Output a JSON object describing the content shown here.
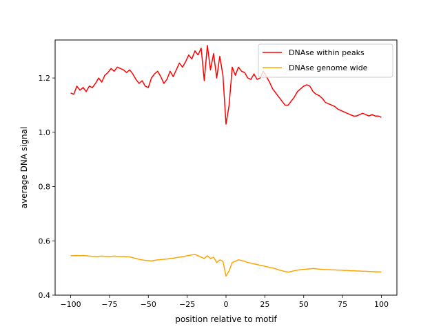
{
  "chart_data": {
    "type": "line",
    "title": "",
    "xlabel": "position relative to motif",
    "ylabel": "average DNA signal",
    "xlim": [
      -110,
      110
    ],
    "ylim": [
      0.4,
      1.34
    ],
    "xticks": [
      -100,
      -75,
      -50,
      -25,
      0,
      25,
      50,
      75,
      100
    ],
    "xtick_labels": [
      "−100",
      "−75",
      "−50",
      "−25",
      "0",
      "25",
      "50",
      "75",
      "100"
    ],
    "yticks": [
      0.4,
      0.6,
      0.8,
      1.0,
      1.2
    ],
    "ytick_labels": [
      "0.4",
      "0.6",
      "0.8",
      "1.0",
      "1.2"
    ],
    "grid": false,
    "legend_position": "top-right",
    "series": [
      {
        "name": "DNAse within peaks",
        "color": "#ff0000",
        "x": [
          -100,
          -98,
          -96,
          -94,
          -92,
          -90,
          -88,
          -86,
          -84,
          -82,
          -80,
          -78,
          -76,
          -74,
          -72,
          -70,
          -68,
          -66,
          -64,
          -62,
          -60,
          -58,
          -56,
          -54,
          -52,
          -50,
          -48,
          -46,
          -44,
          -42,
          -40,
          -38,
          -36,
          -34,
          -32,
          -30,
          -28,
          -26,
          -24,
          -22,
          -20,
          -18,
          -16,
          -14,
          -12,
          -10,
          -8,
          -6,
          -4,
          -2,
          0,
          2,
          4,
          6,
          8,
          10,
          12,
          14,
          16,
          18,
          20,
          22,
          24,
          26,
          28,
          30,
          32,
          34,
          36,
          38,
          40,
          42,
          44,
          46,
          48,
          50,
          52,
          54,
          56,
          58,
          60,
          62,
          64,
          66,
          68,
          70,
          72,
          74,
          76,
          78,
          80,
          82,
          84,
          86,
          88,
          90,
          92,
          94,
          96,
          98,
          100
        ],
        "values": [
          1.145,
          1.14,
          1.17,
          1.155,
          1.165,
          1.15,
          1.17,
          1.165,
          1.18,
          1.2,
          1.185,
          1.21,
          1.22,
          1.235,
          1.225,
          1.24,
          1.235,
          1.23,
          1.22,
          1.23,
          1.215,
          1.195,
          1.18,
          1.19,
          1.17,
          1.165,
          1.2,
          1.215,
          1.225,
          1.205,
          1.18,
          1.195,
          1.225,
          1.205,
          1.23,
          1.255,
          1.24,
          1.26,
          1.285,
          1.27,
          1.3,
          1.285,
          1.31,
          1.19,
          1.32,
          1.23,
          1.29,
          1.2,
          1.28,
          1.21,
          1.03,
          1.1,
          1.24,
          1.21,
          1.24,
          1.225,
          1.22,
          1.2,
          1.195,
          1.215,
          1.195,
          1.2,
          1.225,
          1.205,
          1.185,
          1.16,
          1.145,
          1.13,
          1.115,
          1.1,
          1.1,
          1.115,
          1.13,
          1.15,
          1.16,
          1.17,
          1.175,
          1.17,
          1.15,
          1.14,
          1.135,
          1.125,
          1.11,
          1.105,
          1.1,
          1.095,
          1.085,
          1.08,
          1.075,
          1.07,
          1.065,
          1.06,
          1.06,
          1.065,
          1.07,
          1.065,
          1.06,
          1.065,
          1.06,
          1.06,
          1.055
        ]
      },
      {
        "name": "DNAse genome wide",
        "color": "#ffa500",
        "x": [
          -100,
          -98,
          -96,
          -94,
          -92,
          -90,
          -88,
          -86,
          -84,
          -82,
          -80,
          -78,
          -76,
          -74,
          -72,
          -70,
          -68,
          -66,
          -64,
          -62,
          -60,
          -58,
          -56,
          -54,
          -52,
          -50,
          -48,
          -46,
          -44,
          -42,
          -40,
          -38,
          -36,
          -34,
          -32,
          -30,
          -28,
          -26,
          -24,
          -22,
          -20,
          -18,
          -16,
          -14,
          -12,
          -10,
          -8,
          -6,
          -4,
          -2,
          0,
          2,
          4,
          6,
          8,
          10,
          12,
          14,
          16,
          18,
          20,
          22,
          24,
          26,
          28,
          30,
          32,
          34,
          36,
          38,
          40,
          42,
          44,
          46,
          48,
          50,
          52,
          54,
          56,
          58,
          60,
          62,
          64,
          66,
          68,
          70,
          72,
          74,
          76,
          78,
          80,
          82,
          84,
          86,
          88,
          90,
          92,
          94,
          96,
          98,
          100
        ],
        "values": [
          0.545,
          0.545,
          0.546,
          0.545,
          0.546,
          0.545,
          0.544,
          0.543,
          0.542,
          0.543,
          0.544,
          0.543,
          0.542,
          0.543,
          0.544,
          0.543,
          0.542,
          0.543,
          0.542,
          0.541,
          0.538,
          0.535,
          0.532,
          0.53,
          0.528,
          0.527,
          0.526,
          0.528,
          0.53,
          0.531,
          0.532,
          0.533,
          0.535,
          0.536,
          0.538,
          0.54,
          0.542,
          0.544,
          0.546,
          0.548,
          0.55,
          0.545,
          0.54,
          0.535,
          0.545,
          0.535,
          0.54,
          0.52,
          0.53,
          0.525,
          0.47,
          0.49,
          0.52,
          0.525,
          0.53,
          0.528,
          0.525,
          0.52,
          0.518,
          0.515,
          0.513,
          0.51,
          0.508,
          0.505,
          0.502,
          0.5,
          0.497,
          0.493,
          0.49,
          0.487,
          0.485,
          0.487,
          0.49,
          0.492,
          0.494,
          0.495,
          0.496,
          0.497,
          0.498,
          0.497,
          0.496,
          0.495,
          0.494,
          0.494,
          0.493,
          0.493,
          0.492,
          0.492,
          0.491,
          0.491,
          0.49,
          0.49,
          0.489,
          0.489,
          0.488,
          0.488,
          0.487,
          0.487,
          0.486,
          0.486,
          0.485
        ]
      }
    ]
  }
}
